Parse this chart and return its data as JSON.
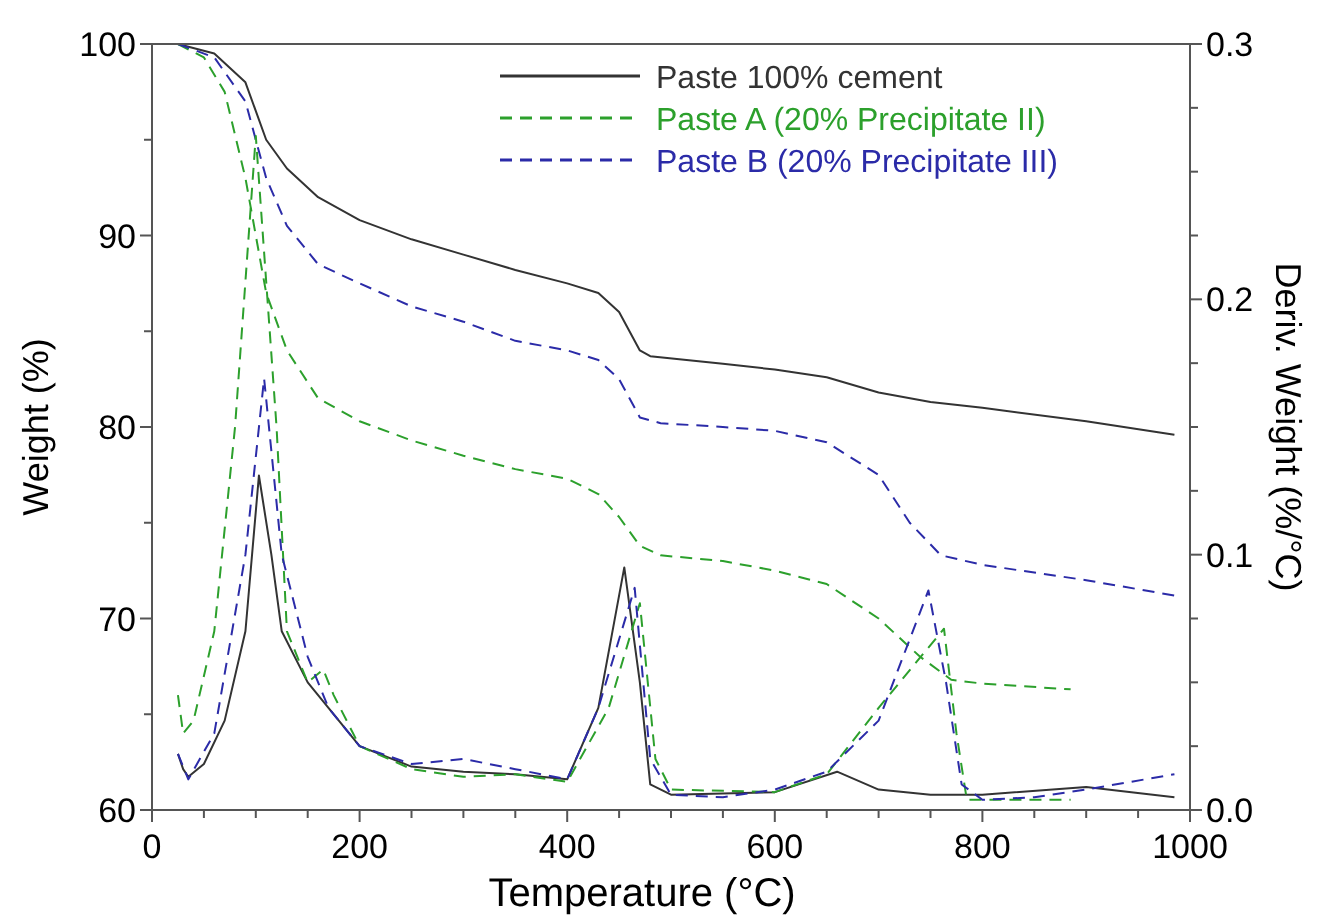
{
  "chart_data": {
    "type": "line",
    "xlabel": "Temperature (°C)",
    "ylabel": "Weight (%)",
    "y2label": "Deriv. Weight (%/°C)",
    "xlim": [
      0,
      1000
    ],
    "xticks": [
      0,
      {
        "value": 50,
        "label": null
      },
      {
        "value": 100,
        "label": null
      },
      {
        "value": 150,
        "label": null
      },
      200,
      {
        "value": 250,
        "label": null
      },
      {
        "value": 300,
        "label": null
      },
      {
        "value": 350,
        "label": null
      },
      400,
      {
        "value": 450,
        "label": null
      },
      {
        "value": 500,
        "label": null
      },
      {
        "value": 550,
        "label": null
      },
      600,
      {
        "value": 650,
        "label": null
      },
      {
        "value": 700,
        "label": null
      },
      {
        "value": 750,
        "label": null
      },
      800,
      {
        "value": 850,
        "label": null
      },
      {
        "value": 900,
        "label": null
      },
      {
        "value": 950,
        "label": null
      },
      1000
    ],
    "ylim": [
      60,
      100
    ],
    "yticks": [
      60,
      {
        "value": 65,
        "label": null
      },
      70,
      {
        "value": 75,
        "label": null
      },
      80,
      {
        "value": 85,
        "label": null
      },
      90,
      {
        "value": 95,
        "label": null
      },
      100
    ],
    "y2lim": [
      0,
      0.3
    ],
    "y2ticks": [
      {
        "value": 0,
        "label": "0.0"
      },
      {
        "value": 0.025,
        "label": null
      },
      {
        "value": 0.05,
        "label": null
      },
      {
        "value": 0.075,
        "label": null
      },
      0.1,
      {
        "value": 0.125,
        "label": null
      },
      {
        "value": 0.15,
        "label": null
      },
      {
        "value": 0.175,
        "label": null
      },
      0.2,
      {
        "value": 0.225,
        "label": null
      },
      {
        "value": 0.25,
        "label": null
      },
      {
        "value": 0.275,
        "label": null
      },
      0.3
    ],
    "grid": false,
    "legend": "top right",
    "marker": "none",
    "series": [
      {
        "name": "Paste 100% cement",
        "color": "#333333",
        "line_style": "solid",
        "x": [
          25,
          60,
          90,
          110,
          130,
          160,
          200,
          250,
          300,
          350,
          400,
          430,
          450,
          470,
          480,
          550,
          600,
          650,
          700,
          750,
          800,
          900,
          985
        ],
        "values": [
          100,
          99.5,
          98,
          95,
          93.5,
          92,
          90.8,
          89.8,
          89,
          88.2,
          87.5,
          87,
          86,
          84,
          83.7,
          83.3,
          83,
          82.6,
          81.8,
          81.3,
          81,
          80.3,
          79.6
        ]
      },
      {
        "name": "Paste A (20% Precipitate II)",
        "color": "#2ca02c",
        "line_style": "dashed",
        "x": [
          25,
          50,
          70,
          90,
          110,
          130,
          160,
          200,
          250,
          300,
          350,
          400,
          430,
          450,
          470,
          490,
          550,
          600,
          650,
          700,
          740,
          770,
          800,
          885
        ],
        "values": [
          100,
          99.3,
          97.5,
          93,
          87,
          84,
          81.5,
          80.3,
          79.3,
          78.5,
          77.8,
          77.3,
          76.5,
          75.3,
          73.8,
          73.3,
          73,
          72.5,
          71.8,
          70,
          68,
          66.8,
          66.6,
          66.3
        ]
      },
      {
        "name": "Paste B (20% Precipitate III)",
        "color": "#2b2ba8",
        "line_style": "dashed",
        "x": [
          25,
          60,
          90,
          110,
          130,
          160,
          200,
          250,
          300,
          350,
          400,
          430,
          450,
          470,
          490,
          550,
          600,
          650,
          700,
          730,
          760,
          800,
          900,
          985
        ],
        "values": [
          100,
          99.3,
          97,
          93,
          90.5,
          88.5,
          87.5,
          86.3,
          85.5,
          84.5,
          84,
          83.5,
          82.5,
          80.5,
          80.2,
          80,
          79.8,
          79.2,
          77.5,
          75,
          73.3,
          72.8,
          72,
          71.2
        ]
      },
      {
        "color": "#333333",
        "line_style": "solid",
        "axis": "y2",
        "x": [
          25,
          30,
          35,
          50,
          70,
          90,
          103,
          115,
          125,
          150,
          170,
          200,
          250,
          300,
          350,
          400,
          430,
          455,
          470,
          480,
          500,
          600,
          660,
          700,
          750,
          800,
          900,
          985
        ],
        "values": [
          0.022,
          0.016,
          0.013,
          0.018,
          0.035,
          0.07,
          0.131,
          0.1,
          0.07,
          0.05,
          0.04,
          0.025,
          0.017,
          0.015,
          0.014,
          0.012,
          0.04,
          0.095,
          0.05,
          0.01,
          0.006,
          0.007,
          0.015,
          0.008,
          0.006,
          0.006,
          0.009,
          0.005
        ]
      },
      {
        "color": "#2ca02c",
        "line_style": "dashed",
        "axis": "y2",
        "x": [
          25,
          30,
          40,
          60,
          80,
          100,
          120,
          130,
          150,
          165,
          175,
          200,
          250,
          300,
          350,
          400,
          440,
          470,
          485,
          500,
          600,
          650,
          700,
          763,
          775,
          785,
          885
        ],
        "values": [
          0.045,
          0.03,
          0.035,
          0.07,
          0.15,
          0.264,
          0.15,
          0.07,
          0.05,
          0.055,
          0.045,
          0.025,
          0.016,
          0.013,
          0.014,
          0.011,
          0.04,
          0.081,
          0.02,
          0.008,
          0.007,
          0.014,
          0.04,
          0.071,
          0.03,
          0.004,
          0.004
        ]
      },
      {
        "color": "#2b2ba8",
        "line_style": "dashed",
        "axis": "y2",
        "x": [
          25,
          35,
          60,
          90,
          108,
          125,
          150,
          170,
          200,
          250,
          300,
          350,
          400,
          430,
          465,
          480,
          500,
          550,
          600,
          650,
          700,
          748,
          765,
          780,
          800,
          850,
          900,
          985
        ],
        "values": [
          0.022,
          0.012,
          0.03,
          0.1,
          0.169,
          0.1,
          0.06,
          0.04,
          0.025,
          0.018,
          0.02,
          0.016,
          0.012,
          0.04,
          0.087,
          0.02,
          0.006,
          0.005,
          0.008,
          0.015,
          0.035,
          0.086,
          0.05,
          0.01,
          0.004,
          0.005,
          0.008,
          0.014
        ]
      }
    ]
  }
}
